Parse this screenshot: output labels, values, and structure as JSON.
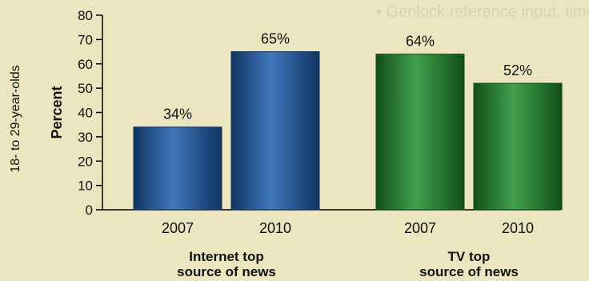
{
  "chart_data": {
    "type": "bar",
    "ylabel": "Percent",
    "side_label": "18- to 29-year-olds",
    "ylim": [
      0,
      80
    ],
    "yticks": [
      0,
      10,
      20,
      30,
      40,
      50,
      60,
      70,
      80
    ],
    "grid": false,
    "groups": [
      {
        "label_lines": [
          "Internet top",
          "source of news"
        ],
        "color": "#1d5fb0",
        "bars": [
          {
            "category": "2007",
            "value": 34,
            "label": "34%"
          },
          {
            "category": "2010",
            "value": 65,
            "label": "65%"
          }
        ]
      },
      {
        "label_lines": [
          "TV top",
          "source of news"
        ],
        "color": "#1f8f2c",
        "bars": [
          {
            "category": "2007",
            "value": 64,
            "label": "64%"
          },
          {
            "category": "2010",
            "value": 52,
            "label": "52%"
          }
        ]
      }
    ]
  },
  "colors": {
    "background": "#ebe6bf",
    "internet_bar": "#1d5fb0",
    "tv_bar": "#1f8f2c",
    "axis": "#000000"
  }
}
